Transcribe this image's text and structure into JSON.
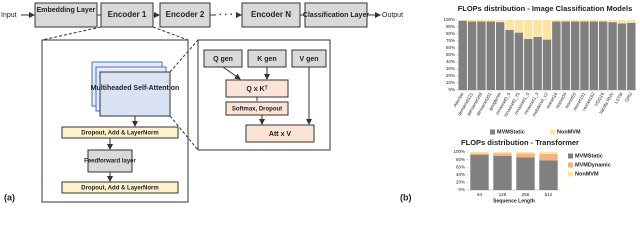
{
  "diagram": {
    "input": "Input",
    "output": "Output",
    "embedding": "Embedding Layer",
    "encoder_1": "Encoder 1",
    "encoder_2": "Encoder 2",
    "ellipsis": "· · ·",
    "encoder_n": "Encoder N",
    "classification": "Classification Layer",
    "mhsa": "Multiheaded Self-Attention",
    "dropout_1": "Dropout, Add & LayerNorm",
    "feedforward": "Feedforward layer",
    "dropout_2": "Dropout, Add & LayerNorm",
    "q_gen": "Q gen",
    "k_gen": "K gen",
    "v_gen": "V gen",
    "qk": "Q x Kᵀ",
    "softmax": "Softmax, Dropout",
    "attv": "Att x V"
  },
  "panel_labels": [
    "(a)",
    "(b)"
  ],
  "chart_data": [
    {
      "type": "bar",
      "stacked": true,
      "title": "FLOPs distribution - Image Classification Models",
      "legend": "bottom",
      "categories": [
        "AlexNet",
        "densenet121",
        "densenet169",
        "densenet201",
        "googlenet",
        "mnasnet0_5",
        "mnasnet0_75",
        "mnasnet1_0",
        "mnasnet1_3",
        "mobilenet_v2",
        "resnet18",
        "resnet34",
        "resnet50",
        "resnet101",
        "resnet152",
        "VGG16",
        "Vanilla RNN",
        "LSTM",
        "GRU"
      ],
      "series": [
        {
          "name": "MVMStatic",
          "color": "#808080",
          "values": [
            99,
            98,
            98,
            98,
            97,
            86,
            82,
            73,
            76,
            72,
            98,
            98,
            98,
            98,
            98,
            98,
            97,
            95,
            96
          ]
        },
        {
          "name": "NonMVM",
          "color": "#fbe5a6",
          "values": [
            1,
            2,
            2,
            2,
            3,
            14,
            18,
            27,
            24,
            28,
            2,
            2,
            2,
            2,
            2,
            2,
            3,
            5,
            4
          ]
        }
      ],
      "ylim": [
        0,
        100
      ],
      "yticks": [
        {
          "value": 0,
          "label": "0%"
        },
        {
          "value": 10,
          "label": "10%"
        },
        {
          "value": 20,
          "label": "20%"
        },
        {
          "value": 30,
          "label": "30%"
        },
        {
          "value": 40,
          "label": "40%"
        },
        {
          "value": 50,
          "label": "50%"
        },
        {
          "value": 60,
          "label": "60%"
        },
        {
          "value": 70,
          "label": "70%"
        },
        {
          "value": 80,
          "label": "80%"
        },
        {
          "value": 90,
          "label": "90%"
        },
        {
          "value": 100,
          "label": "100%"
        }
      ]
    },
    {
      "type": "bar",
      "stacked": true,
      "title": "FLOPs distribution - Transformer",
      "legend": "right",
      "x_label": "Sequence Length",
      "categories": [
        "64",
        "128",
        "256",
        "512"
      ],
      "series": [
        {
          "name": "MVMStatic",
          "color": "#808080",
          "values": [
            93,
            90,
            86,
            78
          ]
        },
        {
          "name": "MVMDynamic",
          "color": "#f4b183",
          "values": [
            3,
            6,
            10,
            17
          ]
        },
        {
          "name": "NonMVM",
          "color": "#fbe5a6",
          "values": [
            4,
            4,
            4,
            5
          ]
        }
      ],
      "ylim": [
        0,
        100
      ],
      "yticks": [
        {
          "value": 0,
          "label": "0%"
        },
        {
          "value": 20,
          "label": "20%"
        },
        {
          "value": 40,
          "label": "40%"
        },
        {
          "value": 60,
          "label": "60%"
        },
        {
          "value": 80,
          "label": "80%"
        },
        {
          "value": 100,
          "label": "100%"
        }
      ]
    }
  ]
}
